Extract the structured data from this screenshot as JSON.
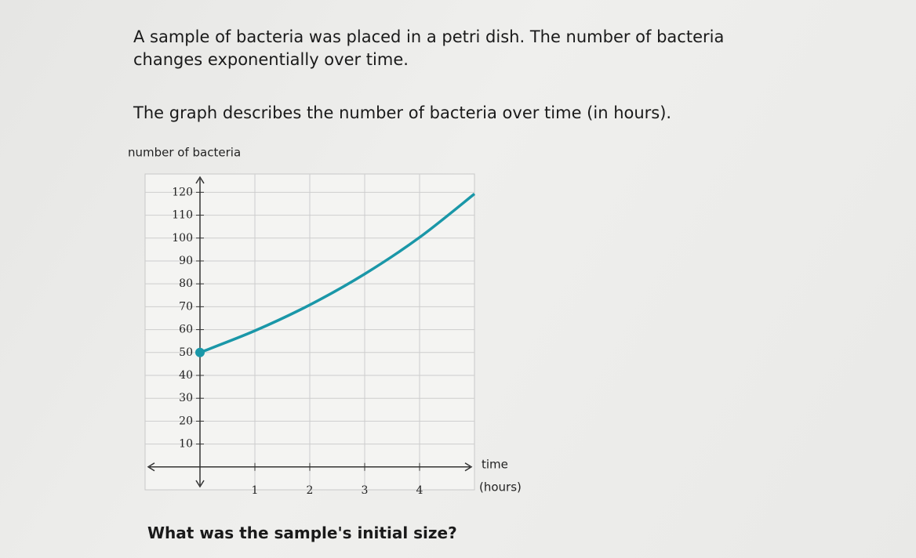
{
  "problem": {
    "text": "A sample of bacteria was placed in a petri dish. The number of bacteria changes exponentially over time.",
    "graph_note": "The graph describes the number of bacteria over time (in hours).",
    "question": "What was the sample's initial size?"
  },
  "chart_data": {
    "type": "line",
    "y_label": "number of bacteria",
    "x_label": [
      "time",
      "(hours)"
    ],
    "x": [
      0,
      1,
      2,
      3,
      4,
      5
    ],
    "values": [
      50,
      59.5,
      70.8,
      84.3,
      100.3,
      119.3
    ],
    "color": "#1a97a8",
    "xlim": [
      -1,
      5
    ],
    "ylim": [
      -10,
      128
    ],
    "xticks": [
      1,
      2,
      3,
      4
    ],
    "yticks": [
      10,
      20,
      30,
      40,
      50,
      60,
      70,
      80,
      90,
      100,
      110,
      120
    ],
    "grid": true
  }
}
